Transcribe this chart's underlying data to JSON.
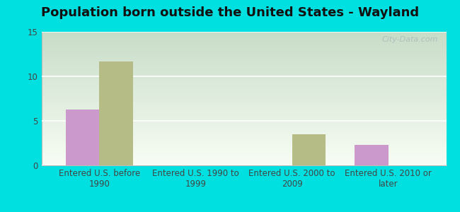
{
  "title": "Population born outside the United States - Wayland",
  "categories": [
    "Entered U.S. before\n1990",
    "Entered U.S. 1990 to\n1999",
    "Entered U.S. 2000 to\n2009",
    "Entered U.S. 2010 or\nlater"
  ],
  "native_values": [
    6.3,
    0,
    0,
    2.3
  ],
  "foreign_values": [
    11.7,
    0,
    3.5,
    0
  ],
  "native_color": "#cc99cc",
  "foreign_color": "#b5bc85",
  "ylim": [
    0,
    15
  ],
  "yticks": [
    0,
    5,
    10,
    15
  ],
  "bar_width": 0.35,
  "outer_bg": "#00e0e0",
  "watermark": "City-Data.com",
  "title_fontsize": 13,
  "tick_fontsize": 8.5,
  "legend_fontsize": 10,
  "gradient_top": "#c8ddc8",
  "gradient_bottom": "#f8fdf4"
}
